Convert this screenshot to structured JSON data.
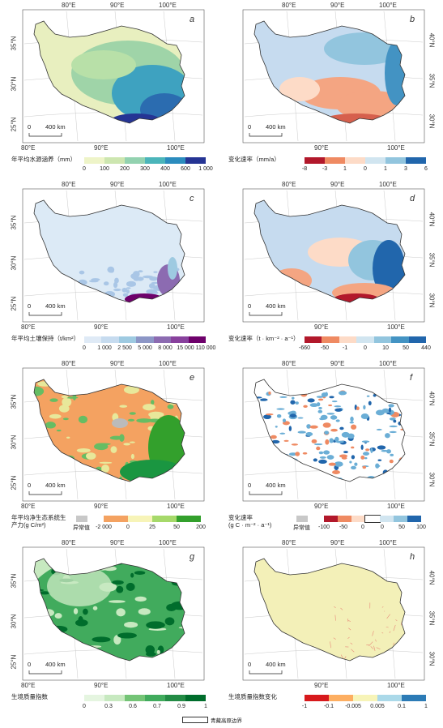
{
  "panels": [
    {
      "letter": "a",
      "top_lon": [
        "80°E",
        "90°E",
        "100°E"
      ],
      "left_lat": [
        "35°N",
        "30°N",
        "25°N"
      ],
      "right_lat": [],
      "bottom_lon": [
        "80°E",
        "90°E",
        "100°E"
      ],
      "scale": "400 km",
      "legend_title": "年平均水源涵养（mm）",
      "legend_title2": "",
      "colors": [
        "#eef4c8",
        "#cde6b0",
        "#93d2b0",
        "#4bb5ba",
        "#2b8cbe",
        "#253494"
      ],
      "ticks": [
        "0",
        "100",
        "200",
        "300",
        "400",
        "600",
        "1 000"
      ],
      "has_abnormal": false,
      "palette": {
        "base": "#e8efbf",
        "mid": "#9fd4a8",
        "high": "#3ea2c0",
        "peak": "#253494"
      }
    },
    {
      "letter": "b",
      "top_lon": [
        "80°E",
        "90°E",
        "100°E"
      ],
      "left_lat": [],
      "right_lat": [
        "40°N",
        "35°N",
        "30°N"
      ],
      "bottom_lon": [
        "90°E",
        "100°E"
      ],
      "scale": "400 km",
      "legend_title": "变化速率（mm/a）",
      "legend_title2": "",
      "colors": [
        "#b2182b",
        "#ef8a62",
        "#fddbc7",
        "#d1e5f0",
        "#92c5de",
        "#2166ac"
      ],
      "ticks": [
        "-8",
        "-3",
        "1",
        "0",
        "1",
        "3",
        "6"
      ],
      "has_abnormal": false,
      "palette": {
        "base": "#c6dbef",
        "mid": "#f4a582",
        "high": "#2166ac",
        "peak": "#b2182b"
      }
    },
    {
      "letter": "c",
      "top_lon": [
        "80°E",
        "90°E",
        "100°E"
      ],
      "left_lat": [
        "35°N",
        "30°N",
        "25°N"
      ],
      "right_lat": [],
      "bottom_lon": [
        "80°E",
        "90°E",
        "100°E"
      ],
      "scale": "400 km",
      "legend_title": "年平均土壤保持（t/km²）",
      "legend_title2": "",
      "colors": [
        "#dfeaf6",
        "#c6dbef",
        "#9ecae1",
        "#8c96c6",
        "#8c6bb1",
        "#88419d",
        "#6e016b"
      ],
      "ticks": [
        "0",
        "1 000",
        "2 500",
        "5 000",
        "8 000",
        "15 000",
        "110 000"
      ],
      "has_abnormal": false,
      "palette": {
        "base": "#dceaf6",
        "mid": "#a9c6e6",
        "high": "#8c6bb1",
        "peak": "#6e016b"
      }
    },
    {
      "letter": "d",
      "top_lon": [
        "80°E",
        "90°E",
        "100°E"
      ],
      "left_lat": [],
      "right_lat": [
        "40°N",
        "35°N",
        "30°N"
      ],
      "bottom_lon": [
        "90°E",
        "100°E"
      ],
      "scale": "400 km",
      "legend_title": "变化速率（t · km⁻² · a⁻¹）",
      "legend_title2": "",
      "colors": [
        "#b2182b",
        "#ef8a62",
        "#fddbc7",
        "#d1e5f0",
        "#92c5de",
        "#4393c3",
        "#2166ac"
      ],
      "ticks": [
        "-660",
        "-50",
        "-1",
        "0",
        "10",
        "50",
        "440"
      ],
      "has_abnormal": false,
      "palette": {
        "base": "#c6dbef",
        "mid": "#f4a582",
        "high": "#2166ac",
        "peak": "#b2182b"
      }
    },
    {
      "letter": "e",
      "top_lon": [
        "80°E",
        "90°E",
        "100°E"
      ],
      "left_lat": [
        "35°N",
        "30°N",
        "25°N"
      ],
      "right_lat": [],
      "bottom_lon": [
        "80°E",
        "90°E",
        "100°E"
      ],
      "scale": "400 km",
      "legend_title": "年平均净生态系统生",
      "legend_title2": "产力(g C/m²)",
      "colors": [
        "#f4a261",
        "#f7f4b8",
        "#a6d96a",
        "#33a02c"
      ],
      "ticks": [
        "-2 000",
        "0",
        "25",
        "50",
        "200"
      ],
      "has_abnormal": true,
      "abnormal_label": "异常值",
      "palette": {
        "base": "#f4a261",
        "mid": "#e8e89a",
        "high": "#66bd63",
        "peak": "#1a9641"
      }
    },
    {
      "letter": "f",
      "top_lon": [
        "80°E",
        "90°E",
        "100°E"
      ],
      "left_lat": [],
      "right_lat": [
        "40°N",
        "35°N",
        "30°N"
      ],
      "bottom_lon": [
        "90°E",
        "100°E"
      ],
      "scale": "400 km",
      "legend_title": "变化速率",
      "legend_title2": "(g C · m⁻² · a⁻¹)",
      "colors": [
        "#b2182b",
        "#ef8a62",
        "#fddbc7",
        "#ffffff",
        "#d1e5f0",
        "#92c5de",
        "#2166ac"
      ],
      "ticks": [
        "-100",
        "-50",
        "0",
        "0",
        "50",
        "100"
      ],
      "has_abnormal": true,
      "abnormal_label": "异常值",
      "palette": {
        "base": "#ffffff",
        "mid": "#6baed6",
        "high": "#4292c6",
        "peak": "#ef8a62"
      }
    },
    {
      "letter": "g",
      "top_lon": [
        "80°E",
        "90°E",
        "100°E"
      ],
      "left_lat": [
        "35°N",
        "30°N",
        "25°N"
      ],
      "right_lat": [],
      "bottom_lon": [
        "80°E",
        "90°E",
        "100°E"
      ],
      "scale": "400 km",
      "legend_title": "生境质量指数",
      "legend_title2": "",
      "colors": [
        "#e5f5e0",
        "#c7e9c0",
        "#74c476",
        "#41ab5d",
        "#238b45",
        "#006d2c"
      ],
      "ticks": [
        "0",
        "0.3",
        "0.6",
        "0.7",
        "0.9",
        "1"
      ],
      "has_abnormal": false,
      "palette": {
        "base": "#c7e9c0",
        "mid": "#74c476",
        "high": "#238b45",
        "peak": "#006d2c"
      }
    },
    {
      "letter": "h",
      "top_lon": [
        "80°E",
        "90°E",
        "100°E"
      ],
      "left_lat": [],
      "right_lat": [
        "40°N",
        "35°N",
        "30°N"
      ],
      "bottom_lon": [
        "90°E",
        "100°E"
      ],
      "scale": "400 km",
      "legend_title": "生境质量指数变化",
      "legend_title2": "",
      "colors": [
        "#d7191c",
        "#fdae61",
        "#f7f4b8",
        "#abd9e9",
        "#2c7bb6"
      ],
      "ticks": [
        "-1",
        "-0.1",
        "-0.005",
        "0.005",
        "0.1",
        "1"
      ],
      "has_abnormal": false,
      "palette": {
        "base": "#f3f0b8",
        "mid": "#f3f0b8",
        "high": "#f5b8a0",
        "peak": "#e88a7a"
      }
    }
  ],
  "bottom_legend": {
    "label": "青藏高原边界"
  }
}
